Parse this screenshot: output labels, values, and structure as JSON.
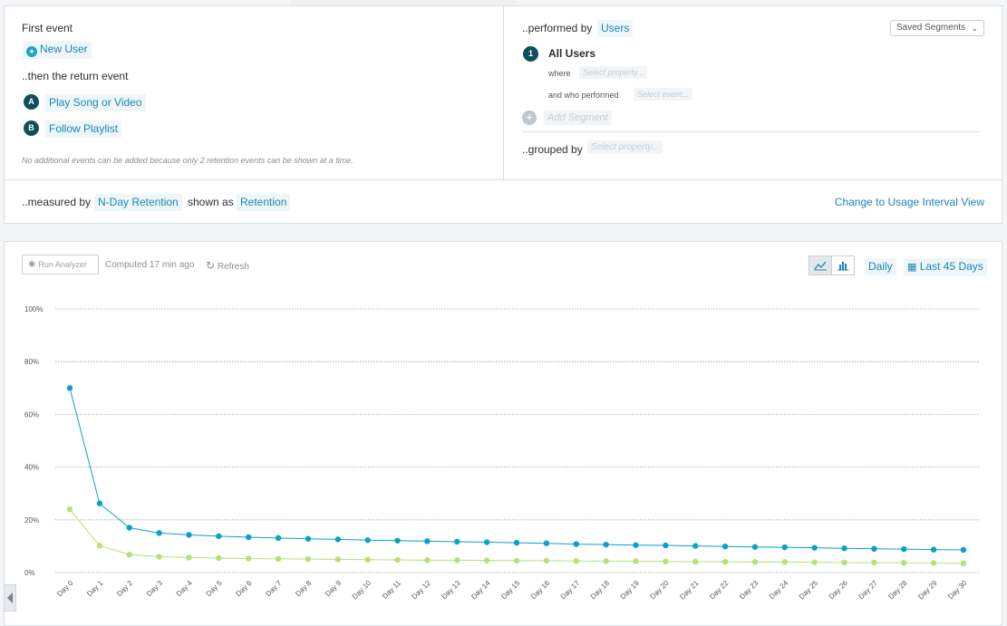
{
  "first_event": {
    "label": "First event",
    "event": "New User"
  },
  "return_event": {
    "label": "..then the return event",
    "events": [
      {
        "badge": "A",
        "name": "Play Song or Video"
      },
      {
        "badge": "B",
        "name": "Follow Playlist"
      }
    ],
    "note": "No additional events can be added because only 2 retention events can be shown at a time."
  },
  "performed_by": {
    "label": "..performed by",
    "value": "Users",
    "saved_segments": "Saved Segments",
    "segment_number": "1",
    "segment_name": "All Users",
    "where_label": "where",
    "where_placeholder": "Select property...",
    "who_label": "and who performed",
    "who_placeholder": "Select event...",
    "add_segment": "Add Segment"
  },
  "grouped_by": {
    "label": "..grouped by",
    "placeholder": "Select property..."
  },
  "measured": {
    "label": "..measured by",
    "value": "N-Day Retention",
    "shown_label": "shown as",
    "shown_value": "Retention",
    "change_view": "Change to Usage Interval View"
  },
  "toolbar": {
    "run": "Run Analyzer",
    "computed": "Computed 17 min ago",
    "refresh": "Refresh",
    "interval": "Daily",
    "range": "Last 45 Days"
  },
  "colors": {
    "series_a": "#0aa2c8",
    "series_b": "#b9df78",
    "accent": "#1a86b3"
  },
  "chart_data": {
    "type": "line",
    "categories": [
      "Day 0",
      "Day 1",
      "Day 2",
      "Day 3",
      "Day 4",
      "Day 5",
      "Day 6",
      "Day 7",
      "Day 8",
      "Day 9",
      "Day 10",
      "Day 11",
      "Day 12",
      "Day 13",
      "Day 14",
      "Day 15",
      "Day 16",
      "Day 17",
      "Day 18",
      "Day 19",
      "Day 20",
      "Day 21",
      "Day 22",
      "Day 23",
      "Day 24",
      "Day 25",
      "Day 26",
      "Day 27",
      "Day 28",
      "Day 29",
      "Day 30"
    ],
    "y_ticks": [
      "0%",
      "20%",
      "40%",
      "60%",
      "80%",
      "100%"
    ],
    "ylim": [
      0,
      100
    ],
    "grid": true,
    "series": [
      {
        "values": [
          70,
          26.2,
          17,
          15,
          14.3,
          13.8,
          13.4,
          13.1,
          12.8,
          12.6,
          12.3,
          12.1,
          11.9,
          11.7,
          11.5,
          11.3,
          11.1,
          10.8,
          10.6,
          10.4,
          10.3,
          10.1,
          9.9,
          9.7,
          9.6,
          9.4,
          9.2,
          9.0,
          8.9,
          8.7,
          8.6
        ]
      },
      {
        "values": [
          24,
          10.2,
          6.8,
          6.0,
          5.7,
          5.5,
          5.3,
          5.2,
          5.1,
          5.0,
          4.9,
          4.8,
          4.7,
          4.7,
          4.6,
          4.5,
          4.5,
          4.4,
          4.3,
          4.3,
          4.2,
          4.1,
          4.1,
          4.0,
          4.0,
          3.9,
          3.8,
          3.8,
          3.7,
          3.6,
          3.5
        ]
      }
    ]
  }
}
